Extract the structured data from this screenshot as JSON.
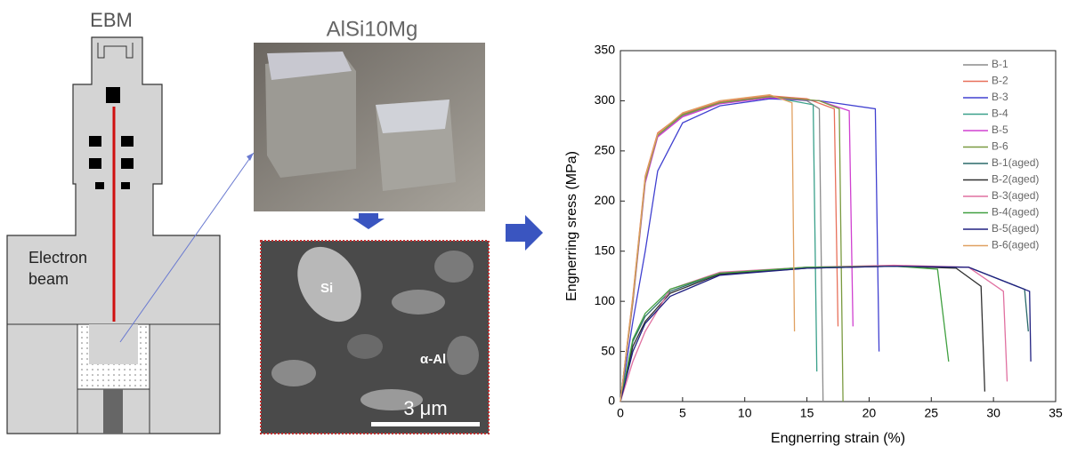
{
  "diagram": {
    "title": "EBM",
    "label": "Electron beam"
  },
  "photo": {
    "title": "AlSi10Mg"
  },
  "micrograph": {
    "labels": [
      "Si",
      "α-Al"
    ],
    "scale_bar": "3 μm"
  },
  "chart_data": {
    "type": "line",
    "xlabel": "Engnerring strain (%)",
    "ylabel": "Engnerring sress (MPa)",
    "xlim": [
      0,
      35
    ],
    "ylim": [
      0,
      350
    ],
    "xticks": [
      0,
      5,
      10,
      15,
      20,
      25,
      30,
      35
    ],
    "yticks": [
      0,
      50,
      100,
      150,
      200,
      250,
      300,
      350
    ],
    "legend": "upper right",
    "grid": false,
    "series": [
      {
        "name": "B-1",
        "color": "#8c8c8c",
        "x": [
          0,
          1,
          2,
          3,
          5,
          8,
          12,
          15,
          16,
          16.3
        ],
        "values": [
          0,
          100,
          220,
          265,
          285,
          298,
          303,
          300,
          292,
          0
        ]
      },
      {
        "name": "B-2",
        "color": "#e8705a",
        "x": [
          0,
          1,
          2,
          3,
          5,
          8,
          12,
          15,
          17.2,
          17.5
        ],
        "values": [
          0,
          105,
          225,
          268,
          287,
          299,
          305,
          302,
          292,
          75
        ]
      },
      {
        "name": "B-3",
        "color": "#4040d0",
        "x": [
          0,
          1,
          2,
          3,
          5,
          8,
          12,
          16,
          20.5,
          20.8
        ],
        "values": [
          0,
          80,
          150,
          230,
          278,
          295,
          302,
          300,
          292,
          50
        ]
      },
      {
        "name": "B-4",
        "color": "#3aa08a",
        "x": [
          0,
          1,
          2,
          3,
          5,
          8,
          12,
          15.5,
          15.8
        ],
        "values": [
          0,
          102,
          222,
          266,
          286,
          298,
          304,
          296,
          30
        ]
      },
      {
        "name": "B-5",
        "color": "#d040d0",
        "x": [
          0,
          1,
          2,
          3,
          5,
          8,
          12,
          16,
          18.4,
          18.7
        ],
        "values": [
          0,
          98,
          218,
          264,
          284,
          297,
          303,
          300,
          290,
          75
        ]
      },
      {
        "name": "B-6",
        "color": "#7a9a40",
        "x": [
          0,
          1,
          2,
          3,
          5,
          8,
          12,
          16,
          17.6,
          17.9
        ],
        "values": [
          0,
          100,
          221,
          266,
          286,
          298,
          304,
          300,
          292,
          0
        ]
      },
      {
        "name": "B-1(aged)",
        "color": "#2a6a6a",
        "x": [
          0,
          1,
          2,
          4,
          8,
          15,
          22,
          28,
          32.5,
          32.8
        ],
        "values": [
          0,
          60,
          85,
          110,
          128,
          134,
          135,
          134,
          112,
          70
        ]
      },
      {
        "name": "B-2(aged)",
        "color": "#303030",
        "x": [
          0,
          1,
          2,
          4,
          8,
          15,
          22,
          27,
          29,
          29.3
        ],
        "values": [
          0,
          55,
          80,
          108,
          127,
          133,
          135,
          133,
          115,
          10
        ]
      },
      {
        "name": "B-3(aged)",
        "color": "#e070a0",
        "x": [
          0,
          1,
          2,
          4,
          8,
          15,
          22,
          28,
          30.8,
          31.1
        ],
        "values": [
          0,
          40,
          70,
          112,
          129,
          134,
          136,
          134,
          110,
          20
        ]
      },
      {
        "name": "B-4(aged)",
        "color": "#40a040",
        "x": [
          0,
          1,
          2,
          4,
          8,
          15,
          22,
          25.5,
          26.4
        ],
        "values": [
          0,
          62,
          88,
          112,
          128,
          134,
          135,
          132,
          40
        ]
      },
      {
        "name": "B-5(aged)",
        "color": "#202080",
        "x": [
          0,
          1,
          2,
          4,
          8,
          15,
          22,
          28,
          32.9,
          33
        ],
        "values": [
          0,
          50,
          78,
          105,
          126,
          133,
          135,
          134,
          110,
          40
        ]
      },
      {
        "name": "B-6(aged)",
        "color": "#e0a060",
        "x": [
          0,
          1,
          2,
          3,
          5,
          8,
          12,
          13.8,
          14
        ],
        "values": [
          0,
          104,
          224,
          267,
          288,
          300,
          306,
          298,
          70
        ]
      }
    ]
  }
}
